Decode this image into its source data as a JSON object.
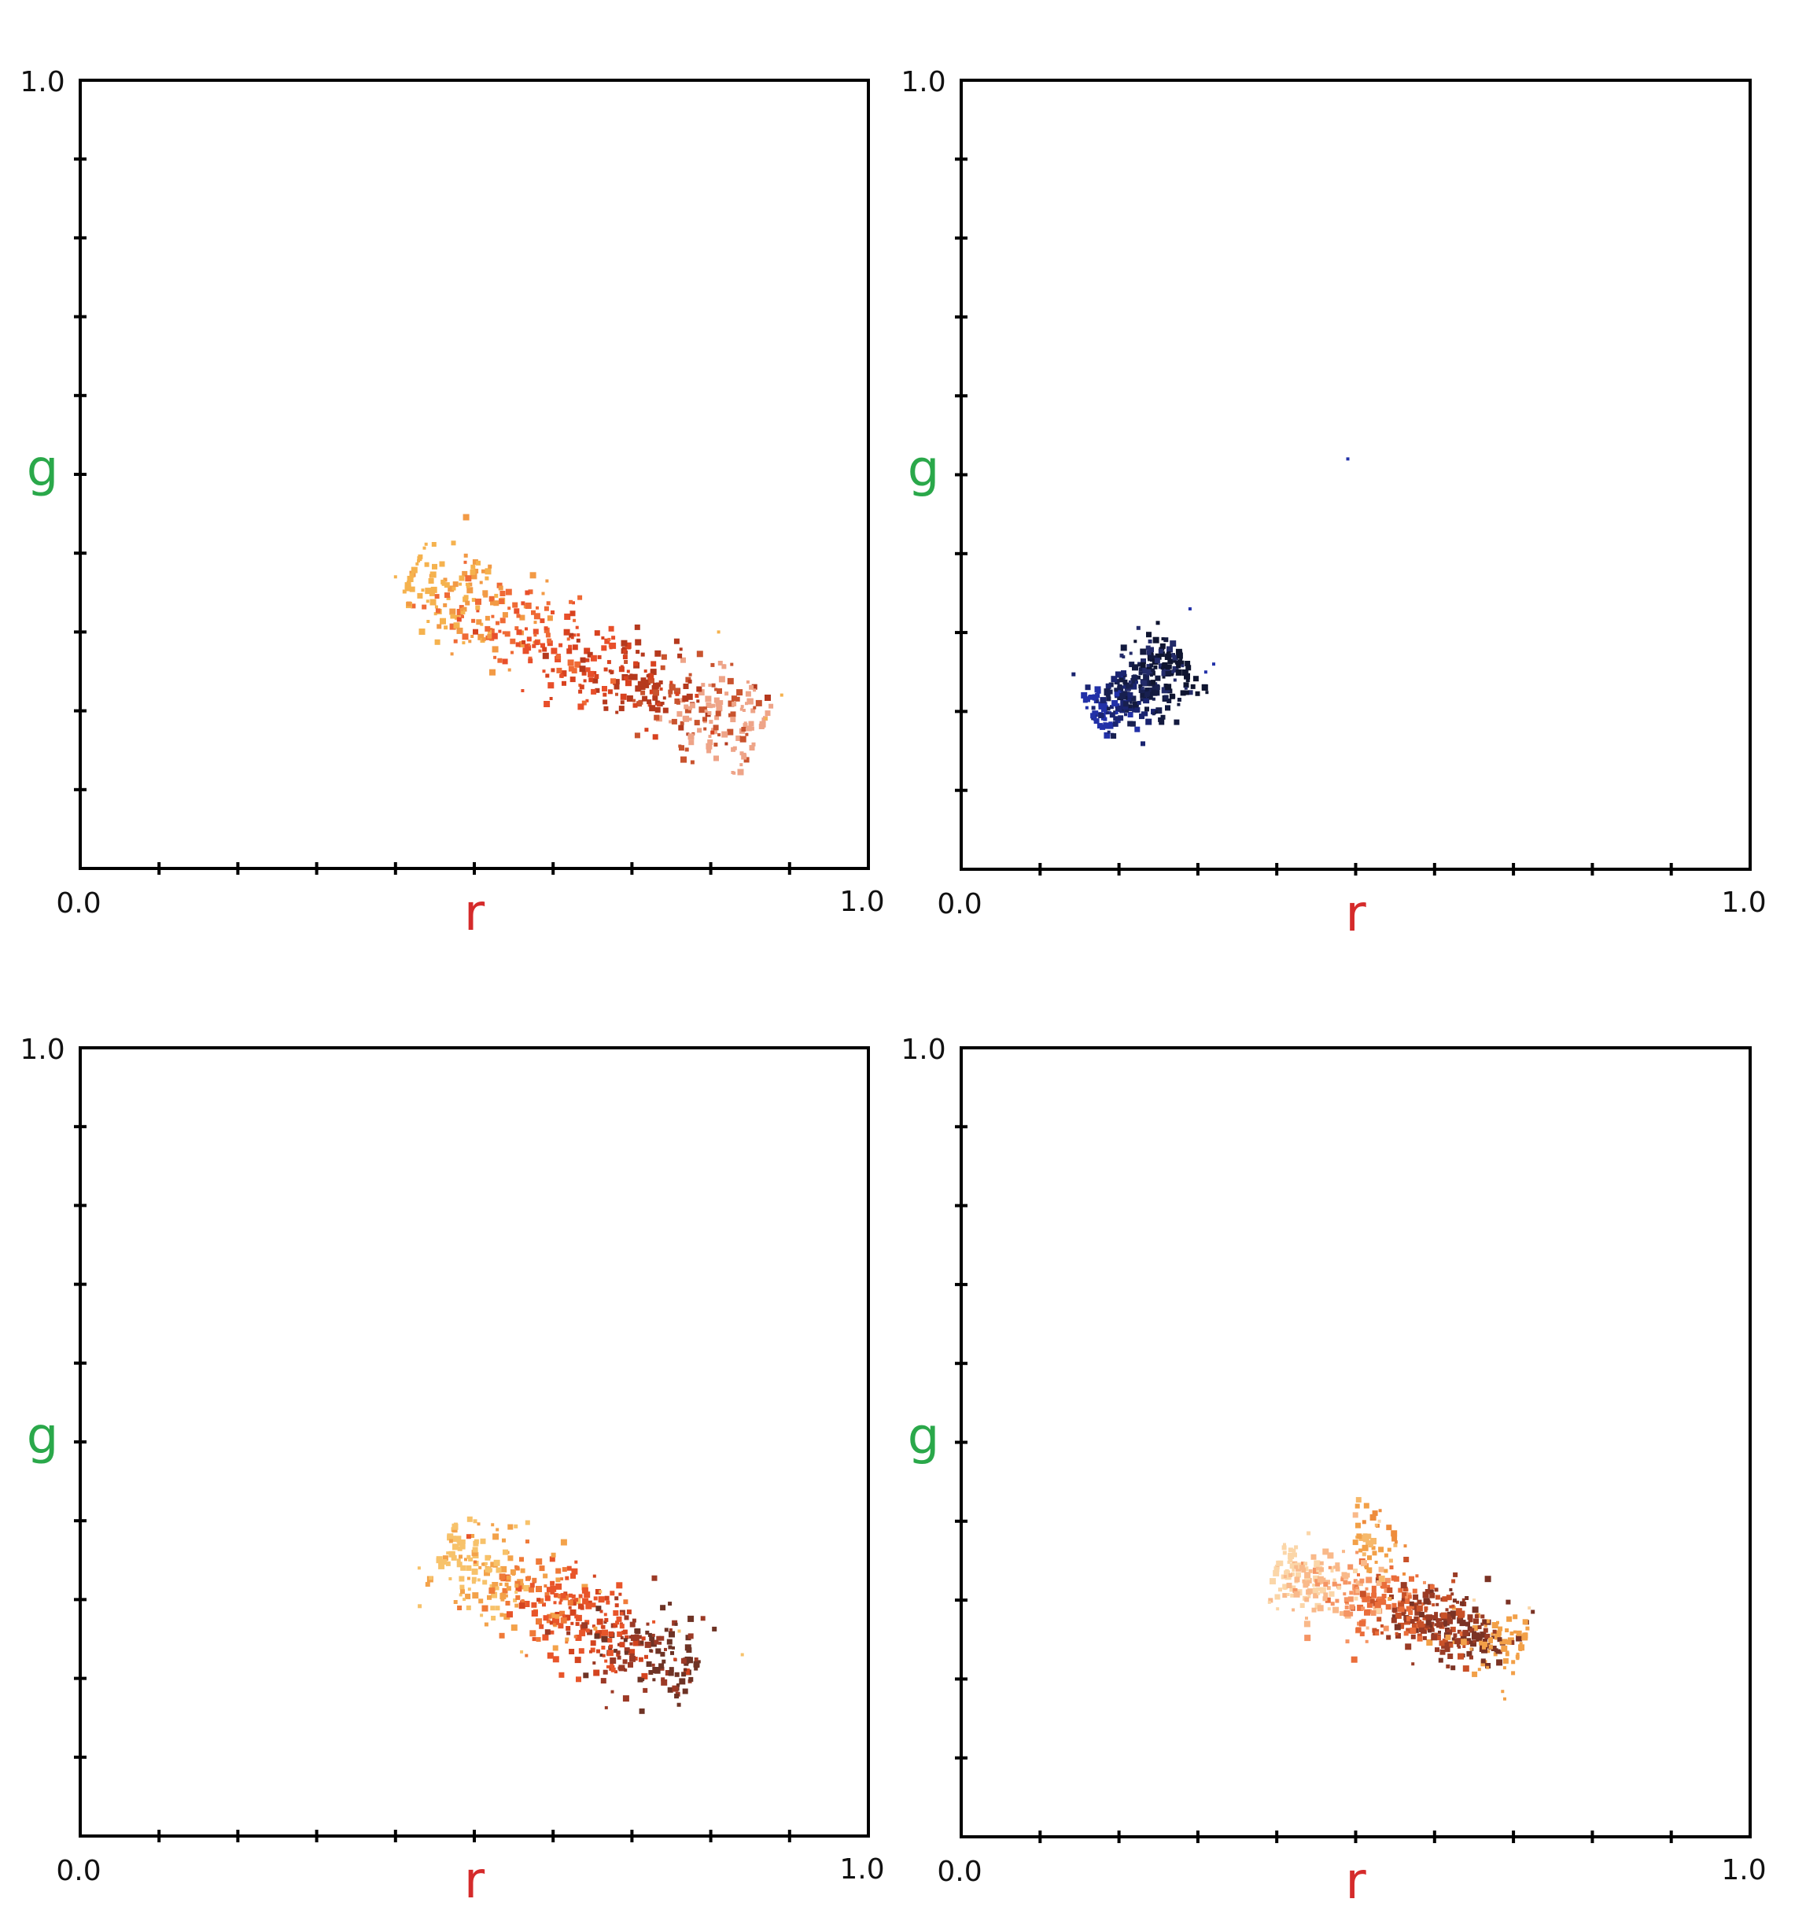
{
  "figure": {
    "background": "#ffffff",
    "frame_color": "#000000",
    "r_label_color": "#d52b2b",
    "g_label_color": "#2aa84a"
  },
  "chart_data": [
    {
      "type": "scatter",
      "panel": "top-left",
      "title": "",
      "xlabel": "r",
      "ylabel": "g",
      "xlim": [
        0.0,
        1.0
      ],
      "ylim": [
        0.0,
        1.0
      ],
      "x_tick_labels": [
        "0.0",
        "1.0"
      ],
      "y_tick_labels": [
        "1.0"
      ],
      "grid": false,
      "cluster": {
        "from": [
          0.42,
          0.37
        ],
        "to": [
          0.86,
          0.17
        ],
        "width": 0.03,
        "count": 520,
        "colors": [
          "#f5b24e",
          "#f29a45",
          "#ef6a35",
          "#e84f2a",
          "#d8421f",
          "#b5391d",
          "#c9532e",
          "#eea488"
        ]
      },
      "outliers": [
        [
          0.4,
          0.37
        ],
        [
          0.81,
          0.3
        ],
        [
          0.89,
          0.22
        ],
        [
          0.87,
          0.19
        ]
      ]
    },
    {
      "type": "scatter",
      "panel": "top-right",
      "title": "",
      "xlabel": "r",
      "ylabel": "g",
      "xlim": [
        0.0,
        1.0
      ],
      "ylim": [
        0.0,
        1.0
      ],
      "x_tick_labels": [
        "0.0",
        "1.0"
      ],
      "y_tick_labels": [
        "1.0"
      ],
      "grid": false,
      "cluster": {
        "from": [
          0.17,
          0.19
        ],
        "to": [
          0.28,
          0.27
        ],
        "width": 0.022,
        "count": 300,
        "colors": [
          "#2231a8",
          "#1a2470",
          "#182050",
          "#131a3f",
          "#232b6a",
          "#0f1530"
        ]
      },
      "outliers": [
        [
          0.49,
          0.52
        ],
        [
          0.29,
          0.33
        ],
        [
          0.32,
          0.26
        ],
        [
          0.31,
          0.25
        ]
      ]
    },
    {
      "type": "scatter",
      "panel": "bottom-left",
      "title": "",
      "xlabel": "r",
      "ylabel": "g",
      "xlim": [
        0.0,
        1.0
      ],
      "ylim": [
        0.0,
        1.0
      ],
      "x_tick_labels": [
        "0.0",
        "1.0"
      ],
      "y_tick_labels": [
        "1.0"
      ],
      "grid": false,
      "cluster": {
        "from": [
          0.46,
          0.36
        ],
        "to": [
          0.78,
          0.21
        ],
        "width": 0.03,
        "count": 480,
        "colors": [
          "#f7c26a",
          "#f3a24a",
          "#ef7a38",
          "#e8552a",
          "#d4441f",
          "#9c3a26",
          "#6e3325"
        ]
      },
      "outliers": [
        [
          0.43,
          0.34
        ],
        [
          0.66,
          0.31
        ],
        [
          0.84,
          0.23
        ],
        [
          0.76,
          0.26
        ]
      ]
    },
    {
      "type": "scatter",
      "panel": "bottom-right",
      "title": "",
      "xlabel": "r",
      "ylabel": "g",
      "xlim": [
        0.0,
        1.0
      ],
      "ylim": [
        0.0,
        1.0
      ],
      "x_tick_labels": [
        "0.0",
        "1.0"
      ],
      "y_tick_labels": [
        "1.0"
      ],
      "grid": false,
      "cluster": {
        "from": [
          0.4,
          0.34
        ],
        "to": [
          0.71,
          0.24
        ],
        "width": 0.022,
        "count": 560,
        "colors": [
          "#fbd6a8",
          "#f9b98a",
          "#f59564",
          "#ea6d3a",
          "#c95128",
          "#9a3b25",
          "#7a3224",
          "#f2a048"
        ]
      },
      "extra_clusters": [
        {
          "from": [
            0.5,
            0.36
          ],
          "to": [
            0.55,
            0.39
          ],
          "width": 0.025,
          "count": 45,
          "colors": [
            "#f2a048",
            "#f6b86a",
            "#ee8c3c"
          ]
        }
      ],
      "outliers": [
        [
          0.53,
          0.4
        ],
        [
          0.65,
          0.3
        ],
        [
          0.72,
          0.29
        ]
      ]
    }
  ]
}
